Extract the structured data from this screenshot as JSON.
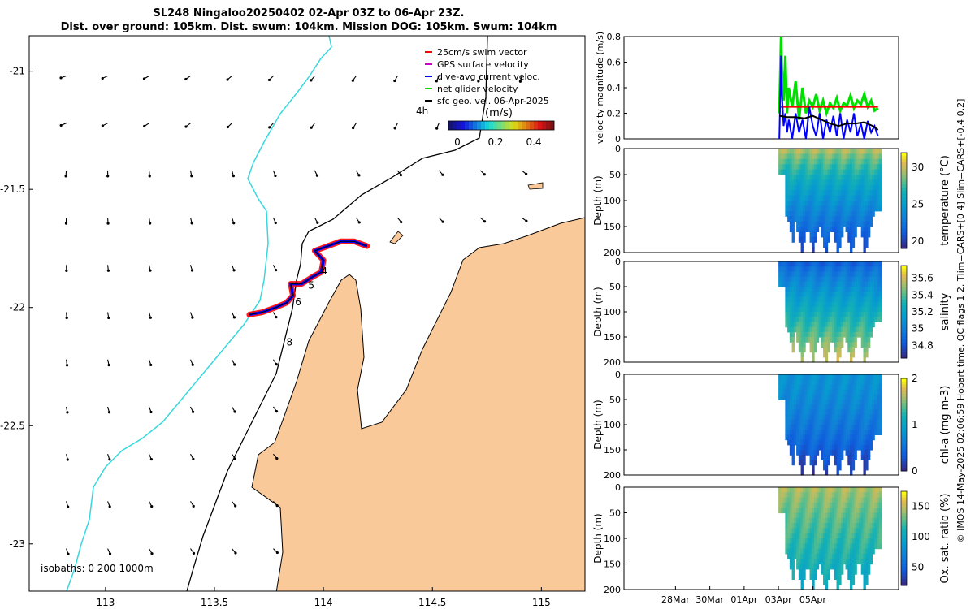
{
  "title": {
    "line1": "SL248 Ningaloo20250402 02-Apr 03Z to 06-Apr 23Z.",
    "line2": "Dist. over ground: 105km. Dist. swum: 104km. Mission DOG: 105km. Swum: 104km"
  },
  "side_note": "© IMOS 14-May-2025 02:06:59 Hobart time. QC flags 1  2. Tlim=CARS+[0 4] Slim=CARS+[-0.4 0.2]",
  "colors": {
    "land": "#f9c99a",
    "shelf_contour": "#000000",
    "deep_contour": "#37d8dd",
    "swim_vector": "#ff0000",
    "gps_velocity": "#cc00cc",
    "dive_avg_current": "#0000ff",
    "net_glider_velocity": "#00e000",
    "sfc_geo_vel": "#000000"
  },
  "chart_data": [
    {
      "type": "map",
      "name": "glider-track-map",
      "xlim": [
        112.65,
        115.2
      ],
      "ylim": [
        -23.2,
        -20.85
      ],
      "x_ticks": [
        113,
        113.5,
        114,
        114.5,
        115
      ],
      "x_tick_labels": [
        "113",
        "113.5",
        "114",
        "114.5",
        "115"
      ],
      "y_ticks": [
        -21,
        -21.5,
        -22,
        -22.5,
        -23
      ],
      "y_tick_labels": [
        "-21",
        "-21.5",
        "-22",
        "-22.5",
        "-23"
      ],
      "legend": [
        {
          "label": "25cm/s swim vector",
          "color": "#ff0000"
        },
        {
          "label": "GPS surface velocity",
          "color": "#cc00cc"
        },
        {
          "label": "dive-avg current veloc.",
          "color": "#0000ff"
        },
        {
          "label": "net glider velocity",
          "color": "#00e000"
        },
        {
          "label": "sfc geo. vel. 06-Apr-2025",
          "color": "#000000"
        }
      ],
      "legend_placement": "top-right",
      "colorbar": {
        "ticks": [
          0,
          0.2,
          0.4
        ],
        "tick_labels": [
          "0",
          "0.2",
          "0.4"
        ],
        "label": "(m/s)",
        "time_label": "4h"
      },
      "isobath_label": "isobaths: 0   200  1000m",
      "day_markers": [
        {
          "label": "4",
          "lon": 113.99,
          "lat": -21.86
        },
        {
          "label": "5",
          "lon": 113.93,
          "lat": -21.92
        },
        {
          "label": "6",
          "lon": 113.87,
          "lat": -21.99
        },
        {
          "label": "8",
          "lon": 113.83,
          "lat": -22.16
        }
      ],
      "track": [
        {
          "lon": 113.66,
          "lat": -22.03
        },
        {
          "lon": 113.72,
          "lat": -22.02
        },
        {
          "lon": 113.78,
          "lat": -22.0
        },
        {
          "lon": 113.83,
          "lat": -21.98
        },
        {
          "lon": 113.86,
          "lat": -21.95
        },
        {
          "lon": 113.85,
          "lat": -21.9
        },
        {
          "lon": 113.9,
          "lat": -21.9
        },
        {
          "lon": 113.95,
          "lat": -21.87
        },
        {
          "lon": 113.99,
          "lat": -21.85
        },
        {
          "lon": 114.0,
          "lat": -21.8
        },
        {
          "lon": 113.96,
          "lat": -21.76
        },
        {
          "lon": 114.02,
          "lat": -21.74
        },
        {
          "lon": 114.08,
          "lat": -21.72
        },
        {
          "lon": 114.14,
          "lat": -21.72
        },
        {
          "lon": 114.2,
          "lat": -21.74
        }
      ],
      "vector_grid": {
        "lon_start": 112.82,
        "lon_step": 0.19,
        "lon_count": 12,
        "lat_start": -21.02,
        "lat_step": -0.2,
        "lat_count": 11
      }
    },
    {
      "type": "line",
      "name": "velocity-magnitude-panel",
      "ylabel": "velocity magnitude (m/s)",
      "ylim": [
        0,
        0.8
      ],
      "y_ticks": [
        0,
        0.2,
        0.4,
        0.6,
        0.8
      ],
      "y_tick_labels": [
        "0",
        "0.2",
        "0.4",
        "0.6",
        "0.8"
      ],
      "xlim": [
        -8,
        8
      ],
      "series": [
        {
          "name": "net glider velocity",
          "color": "#00e000",
          "x": [
            1.05,
            1.1,
            1.15,
            1.2,
            1.3,
            1.4,
            1.5,
            1.6,
            1.8,
            2.0,
            2.2,
            2.4,
            2.6,
            2.8,
            3.0,
            3.2,
            3.4,
            3.6,
            3.8,
            4.0,
            4.2,
            4.4,
            4.6,
            4.8,
            5.0,
            5.2,
            5.4,
            5.6,
            5.8,
            6.0,
            6.2,
            6.4,
            6.6,
            6.8
          ],
          "values": [
            0.2,
            0.5,
            0.8,
            0.55,
            0.3,
            0.65,
            0.2,
            0.4,
            0.25,
            0.45,
            0.15,
            0.4,
            0.2,
            0.3,
            0.25,
            0.35,
            0.22,
            0.3,
            0.2,
            0.28,
            0.24,
            0.32,
            0.22,
            0.28,
            0.26,
            0.34,
            0.24,
            0.3,
            0.27,
            0.35,
            0.25,
            0.3,
            0.22,
            0.24
          ]
        },
        {
          "name": "25cm/s swim vector",
          "color": "#ff0000",
          "x": [
            1.05,
            2.0,
            3.0,
            4.0,
            5.0,
            6.0,
            6.8
          ],
          "values": [
            0.25,
            0.25,
            0.25,
            0.25,
            0.25,
            0.25,
            0.25
          ]
        },
        {
          "name": "dive-avg current veloc.",
          "color": "#0000ff",
          "x": [
            1.05,
            1.1,
            1.15,
            1.2,
            1.3,
            1.4,
            1.5,
            1.6,
            1.8,
            2.0,
            2.2,
            2.4,
            2.6,
            2.8,
            3.0,
            3.2,
            3.4,
            3.6,
            3.8,
            4.0,
            4.2,
            4.4,
            4.6,
            4.8,
            5.0,
            5.2,
            5.4,
            5.6,
            5.8,
            6.0,
            6.2,
            6.4,
            6.6,
            6.8
          ],
          "values": [
            0.0,
            0.3,
            0.65,
            0.35,
            0.1,
            0.2,
            0.05,
            0.15,
            0.0,
            0.2,
            0.05,
            0.15,
            0.0,
            0.25,
            0.1,
            0.02,
            0.2,
            0.0,
            0.15,
            0.05,
            0.18,
            0.02,
            0.2,
            0.0,
            0.15,
            0.05,
            0.2,
            0.02,
            0.12,
            0.0,
            0.14,
            0.05,
            0.1,
            0.02
          ]
        },
        {
          "name": "sfc geo. vel.",
          "color": "#000000",
          "x": [
            1.05,
            1.5,
            2.0,
            2.5,
            3.0,
            3.5,
            4.0,
            4.5,
            5.0,
            5.5,
            6.0,
            6.5,
            6.8
          ],
          "values": [
            0.18,
            0.17,
            0.17,
            0.16,
            0.18,
            0.15,
            0.12,
            0.1,
            0.12,
            0.12,
            0.13,
            0.1,
            0.07
          ]
        }
      ]
    },
    {
      "type": "heatmap",
      "name": "temperature-panel",
      "ylabel": "Depth (m)",
      "colorbar_label": "temperature (°C)",
      "y_ticks": [
        0,
        50,
        100,
        150,
        200
      ],
      "y_tick_labels": [
        "0",
        "50",
        "100",
        "150",
        "200"
      ],
      "colorbar_ticks": [
        20,
        25,
        30
      ],
      "colorbar_tick_labels": [
        "20",
        "25",
        "30"
      ],
      "colorbar_range": [
        19,
        32
      ],
      "colormap": "parula",
      "surface_value": 29.5,
      "deep_value": 20,
      "profiles": [
        {
          "x": 1.5,
          "max_depth": 190
        },
        {
          "x": 2.3,
          "max_depth": 200
        },
        {
          "x": 2.95,
          "max_depth": 200
        },
        {
          "x": 3.7,
          "max_depth": 200
        },
        {
          "x": 4.4,
          "max_depth": 200
        },
        {
          "x": 5.2,
          "max_depth": 200
        },
        {
          "x": 6.0,
          "max_depth": 200
        }
      ]
    },
    {
      "type": "heatmap",
      "name": "salinity-panel",
      "ylabel": "Depth (m)",
      "colorbar_label": "salinity",
      "y_ticks": [
        0,
        50,
        100,
        150,
        200
      ],
      "y_tick_labels": [
        "0",
        "50",
        "100",
        "150",
        "200"
      ],
      "colorbar_ticks": [
        34.8,
        35,
        35.2,
        35.4,
        35.6
      ],
      "colorbar_tick_labels": [
        "34.8",
        "35",
        "35.2",
        "35.4",
        "35.6"
      ],
      "colorbar_range": [
        34.65,
        35.75
      ],
      "colormap": "parula",
      "surface_value": 34.85,
      "deep_value": 35.6
    },
    {
      "type": "heatmap",
      "name": "chla-panel",
      "ylabel": "Depth (m)",
      "colorbar_label": "chl-a (mg m-3)",
      "y_ticks": [
        0,
        50,
        100,
        150,
        200
      ],
      "y_tick_labels": [
        "0",
        "50",
        "100",
        "150",
        "200"
      ],
      "colorbar_ticks": [
        0,
        1,
        2
      ],
      "colorbar_tick_labels": [
        "0",
        "1",
        "2"
      ],
      "colorbar_range": [
        0,
        2
      ],
      "colormap": "parula",
      "surface_value": 0.8,
      "deep_value": 0.05
    },
    {
      "type": "heatmap",
      "name": "oxygen-panel",
      "ylabel": "Depth (m)",
      "colorbar_label": "Ox. sat. ratio (%)",
      "y_ticks": [
        0,
        50,
        100,
        150,
        200
      ],
      "y_tick_labels": [
        "0",
        "50",
        "100",
        "150",
        "200"
      ],
      "colorbar_ticks": [
        50,
        100,
        150
      ],
      "colorbar_tick_labels": [
        "50",
        "100",
        "150"
      ],
      "colorbar_range": [
        20,
        175
      ],
      "colormap": "parula",
      "surface_value": 145,
      "deep_value": 100,
      "x_ticks": [
        -5,
        -3,
        -1,
        1,
        3
      ],
      "x_tick_labels": [
        "28Mar",
        "30Mar",
        "01Apr",
        "03Apr",
        "05Apr"
      ]
    }
  ]
}
